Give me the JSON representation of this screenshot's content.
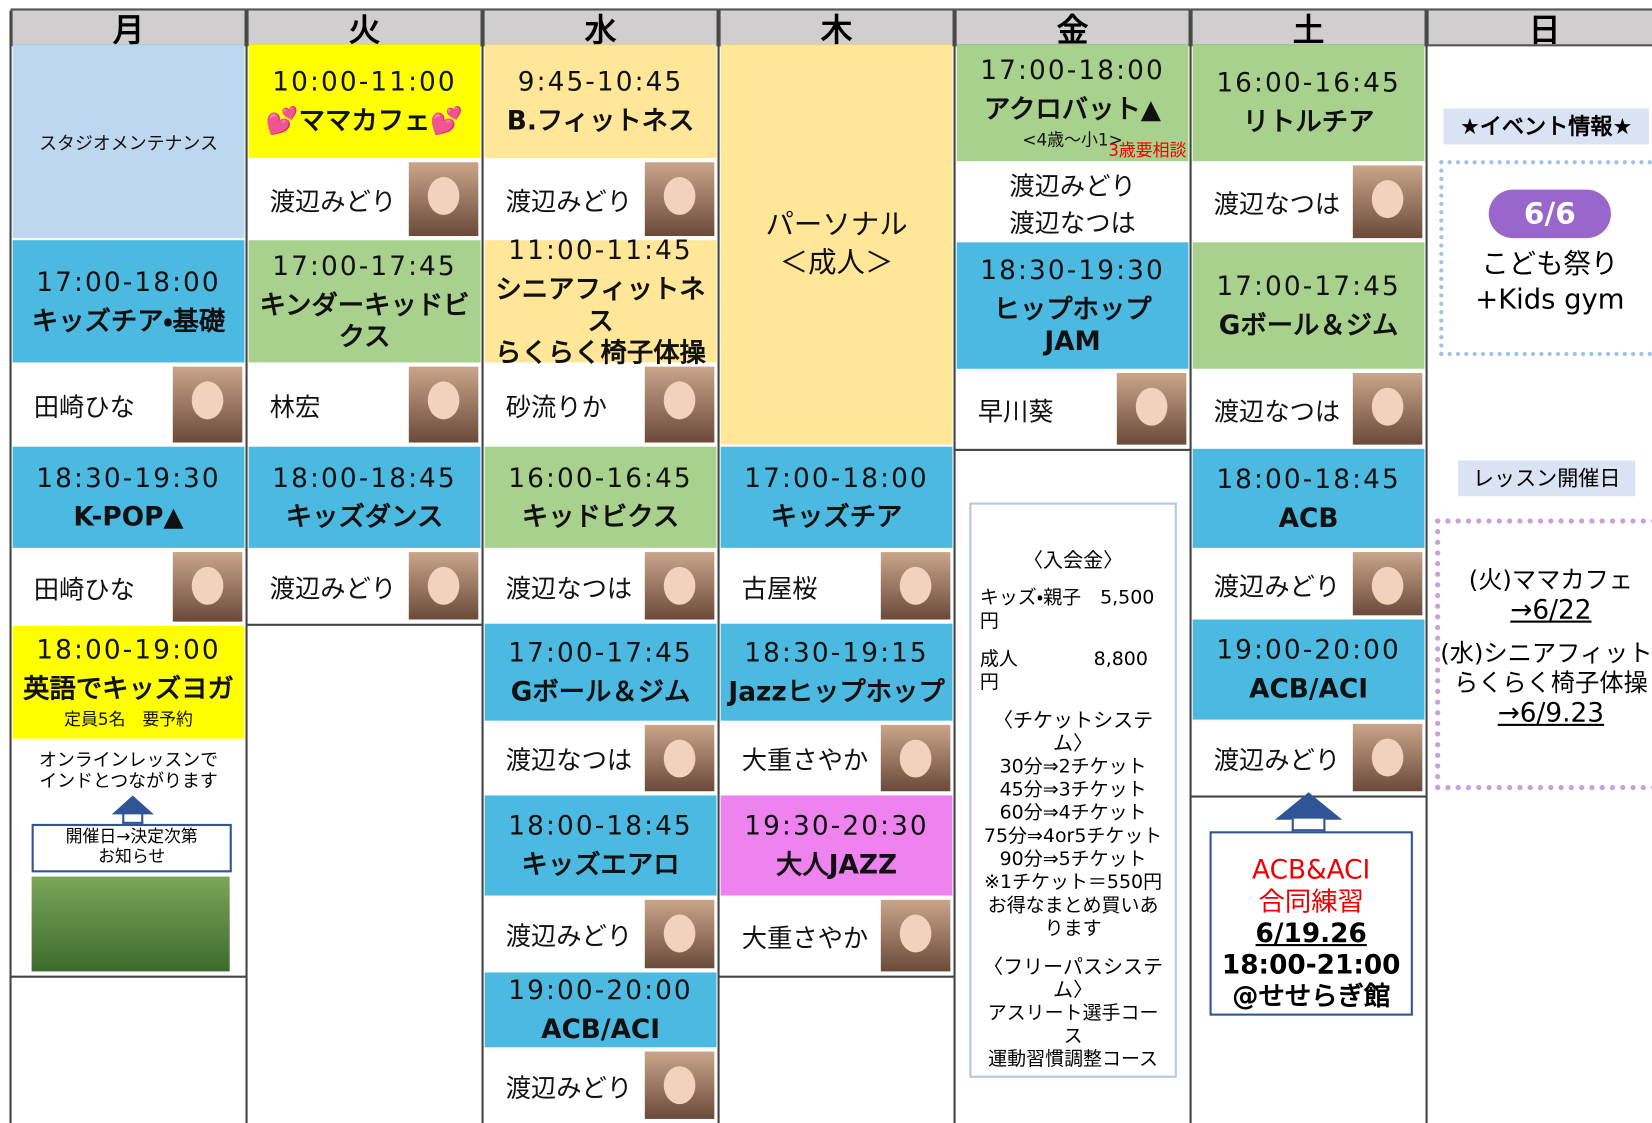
{
  "days": [
    "月",
    "火",
    "水",
    "木",
    "金",
    "土",
    "日"
  ],
  "schedule": [
    [
      {
        "text": [
          "スタジオメンテナンス"
        ]
      },
      {
        "time": "17:00-18:00",
        "title": [
          "キッズチア・基礎"
        ]
      },
      {
        "teacher": [
          "田崎ひな"
        ]
      },
      {
        "time": "18:30-19:30",
        "title": [
          "K-POP▲"
        ]
      },
      {
        "teacher": [
          "田崎ひな"
        ]
      },
      {
        "time": "18:00-19:00",
        "title": [
          "英語でキッズヨガ"
        ],
        "note": [
          "定員5名　要予約"
        ]
      }
    ],
    [
      {
        "time": "10:00-11:00",
        "title": [
          "💕ママカフェ💕"
        ]
      },
      {
        "teacher": [
          "渡辺みどり"
        ]
      },
      {
        "time": "17:00-17:45",
        "title": [
          "キンダーキッドビクス"
        ]
      },
      {
        "teacher": [
          "林宏"
        ]
      },
      {
        "time": "18:00-18:45",
        "title": [
          "キッズダンス"
        ]
      },
      {
        "teacher": [
          "渡辺みどり"
        ]
      }
    ],
    [
      {
        "time": "9:45-10:45",
        "title": [
          "B.フィットネス"
        ]
      },
      {
        "teacher": [
          "渡辺みどり"
        ]
      },
      {
        "time": "11:00-11:45",
        "title": [
          "シニアフィットネス",
          "らくらく椅子体操"
        ]
      },
      {
        "teacher": [
          "砂流りか"
        ]
      },
      {
        "time": "16:00-16:45",
        "title": [
          "キッドビクス"
        ]
      },
      {
        "teacher": [
          "渡辺なつは"
        ]
      },
      {
        "time": "17:00-17:45",
        "title": [
          "Gボール＆ジム"
        ]
      },
      {
        "teacher": [
          "渡辺なつは"
        ]
      },
      {
        "time": "18:00-18:45",
        "title": [
          "キッズエアロ"
        ]
      },
      {
        "teacher": [
          "渡辺みどり"
        ]
      },
      {
        "time": "19:00-20:00",
        "title": [
          "ACB/ACI"
        ]
      },
      {
        "teacher": [
          "渡辺みどり"
        ]
      }
    ],
    [
      {
        "title": [
          "パーソナル",
          "＜成人＞"
        ]
      },
      {
        "time": "17:00-18:00",
        "title": [
          "キッズチア"
        ]
      },
      {
        "teacher": [
          "古屋桜"
        ]
      },
      {
        "time": "18:30-19:15",
        "title": [
          "Jazzヒップホップ"
        ]
      },
      {
        "teacher": [
          "大重さやか"
        ]
      },
      {
        "time": "19:30-20:30",
        "title": [
          "大人JAZZ"
        ]
      },
      {
        "teacher": [
          "大重さやか"
        ]
      }
    ],
    [
      {
        "time": "17:00-18:00",
        "title": [
          "アクロバット▲"
        ],
        "note": [
          "<4歳～小1>"
        ],
        "remark": "3歳要相談"
      },
      {
        "teacher": [
          "渡辺みどり",
          "渡辺なつは"
        ]
      },
      {
        "time": "18:30-19:30",
        "title": [
          "ヒップホップ",
          "JAM"
        ]
      },
      {
        "teacher": [
          "早川葵"
        ]
      }
    ],
    [
      {
        "time": "16:00-16:45",
        "title": [
          "リトルチア"
        ]
      },
      {
        "teacher": [
          "渡辺なつは"
        ]
      },
      {
        "time": "17:00-17:45",
        "title": [
          "Gボール＆ジム"
        ]
      },
      {
        "teacher": [
          "渡辺なつは"
        ]
      },
      {
        "time": "18:00-18:45",
        "title": [
          "ACB"
        ]
      },
      {
        "teacher": [
          "渡辺みどり"
        ]
      },
      {
        "time": "19:00-20:00",
        "title": [
          "ACB/ACI"
        ]
      },
      {
        "teacher": [
          "渡辺みどり"
        ]
      }
    ]
  ],
  "online": {
    "text": [
      "オンラインレッスンで",
      "インドとつながります"
    ],
    "notice": [
      "開催日→決定次第",
      "お知らせ"
    ]
  },
  "fees": [
    "〈入会金〉",
    "キッズ・親子　5,500円",
    "成人　　　　8,800円",
    "〈チケットシステム〉",
    "30分⇒2チケット",
    "45分⇒3チケット",
    "60分⇒4チケット",
    "75分⇒4or5チケット",
    "90分⇒5チケット",
    "※1チケット＝550円",
    "お得なまとめ買いあります",
    "〈フリーパスシステム〉",
    "アスリート選手コース",
    "運動習慣調整コース"
  ],
  "joint_practice": {
    "title": [
      "ACB&ACI",
      "合同練習"
    ],
    "dates": "6/19.26",
    "time": "18:00-21:00",
    "place": "@せせらぎ館"
  },
  "event": {
    "heading": "★イベント情報★",
    "date": "6/6",
    "name": [
      "こども祭り",
      "+Kids gym"
    ]
  },
  "lesson_dates": {
    "heading": "レッスン開催日",
    "items": [
      {
        "name": [
          "(火)ママカフェ"
        ],
        "dates": "→6/22"
      },
      {
        "name": [
          "(水)シニアフィットネス",
          "らくらく椅子体操"
        ],
        "dates": "→6/9.23"
      }
    ]
  }
}
